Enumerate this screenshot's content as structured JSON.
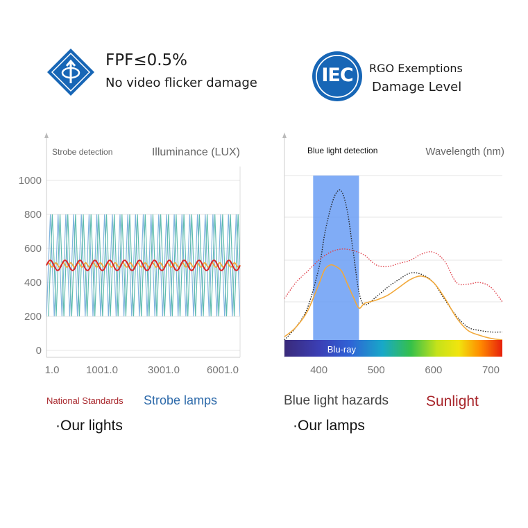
{
  "header": {
    "left": {
      "title": "FPF≤0.5%",
      "subtitle": "No video flicker damage"
    },
    "right": {
      "logo_text": "IEC",
      "title": "RGO Exemptions",
      "subtitle": "Damage Level"
    }
  },
  "colors": {
    "brand_blue": "#1766b6",
    "strobe_line": "#7fb3de",
    "national_line": "#d9262a",
    "our_line": "#f2a93b",
    "teal_line": "#5fbcae",
    "blue_band": "#6a9df5",
    "sunlight_dotted": "#e0404a",
    "blue_hazard_dotted": "#222222"
  },
  "chart_data": [
    {
      "type": "line",
      "title": "Strobe detection",
      "ylabel": "Illuminance (LUX)",
      "x_ticks": [
        "1.0",
        "1001.0",
        "3001.0",
        "6001.0"
      ],
      "y_ticks": [
        0,
        200,
        400,
        600,
        800,
        1000
      ],
      "ylim": [
        0,
        1100
      ],
      "grid": "horizontal",
      "series": [
        {
          "name": "Strobe lamps",
          "kind": "triangle-wave",
          "min": 200,
          "max": 800,
          "cycles": 25
        },
        {
          "name": "National Standards",
          "kind": "sine-wave",
          "min": 470,
          "max": 530,
          "cycles": 13
        },
        {
          "name": "Our lights",
          "kind": "sine-wave",
          "min": 490,
          "max": 515,
          "cycles": 26
        }
      ],
      "legend": [
        "National Standards",
        "Strobe lamps",
        "·Our lights"
      ]
    },
    {
      "type": "line",
      "title": "Blue light detection",
      "xlabel": "Wavelength (nm)",
      "x_ticks": [
        400,
        500,
        600,
        700
      ],
      "xlim": [
        340,
        720
      ],
      "ylim": [
        0,
        1
      ],
      "grid": "horizontal",
      "band_label": "Blu-ray",
      "band_range": [
        390,
        470
      ],
      "series": [
        {
          "name": "Blue light hazards",
          "style": "dotted",
          "x": [
            340,
            360,
            380,
            400,
            410,
            420,
            430,
            440,
            450,
            460,
            470,
            480,
            500,
            520,
            540,
            560,
            580,
            600,
            620,
            640,
            660,
            680,
            700,
            720
          ],
          "y": [
            0.0,
            0.08,
            0.2,
            0.45,
            0.66,
            0.82,
            0.92,
            0.93,
            0.8,
            0.55,
            0.3,
            0.22,
            0.27,
            0.33,
            0.38,
            0.42,
            0.41,
            0.36,
            0.25,
            0.15,
            0.08,
            0.06,
            0.05,
            0.05
          ]
        },
        {
          "name": "Sunlight",
          "style": "dotted",
          "x": [
            340,
            360,
            380,
            400,
            420,
            440,
            460,
            480,
            500,
            520,
            540,
            560,
            580,
            600,
            620,
            640,
            660,
            680,
            700,
            720
          ],
          "y": [
            0.26,
            0.36,
            0.43,
            0.5,
            0.55,
            0.57,
            0.56,
            0.53,
            0.47,
            0.46,
            0.48,
            0.5,
            0.54,
            0.55,
            0.49,
            0.36,
            0.35,
            0.36,
            0.33,
            0.24
          ]
        },
        {
          "name": "Our lamps",
          "style": "solid",
          "x": [
            340,
            360,
            380,
            400,
            410,
            420,
            430,
            440,
            450,
            460,
            470,
            480,
            500,
            520,
            540,
            560,
            580,
            600,
            620,
            640,
            660,
            680,
            700,
            720
          ],
          "y": [
            0.02,
            0.08,
            0.18,
            0.35,
            0.44,
            0.47,
            0.46,
            0.43,
            0.35,
            0.27,
            0.2,
            0.23,
            0.25,
            0.28,
            0.33,
            0.38,
            0.4,
            0.36,
            0.26,
            0.14,
            0.06,
            0.03,
            0.01,
            0.0
          ]
        }
      ],
      "legend": [
        "Blue light hazards",
        "Sunlight",
        "·Our lamps"
      ]
    }
  ]
}
